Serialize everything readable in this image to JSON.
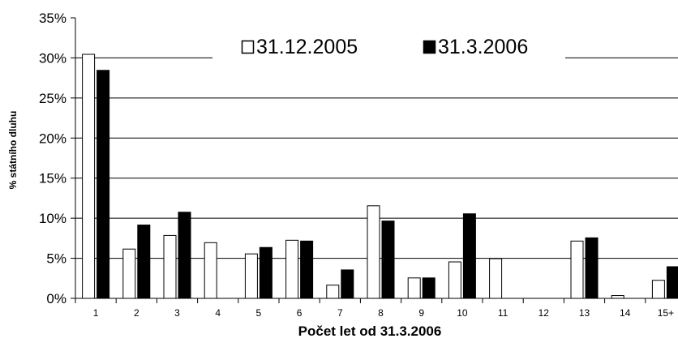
{
  "chart_data": {
    "type": "bar",
    "title": "",
    "xlabel": "Počet let od 31.3.2006",
    "ylabel": "% státního dluhu",
    "categories": [
      "1",
      "2",
      "3",
      "4",
      "5",
      "6",
      "7",
      "8",
      "9",
      "10",
      "11",
      "12",
      "13",
      "14",
      "15+"
    ],
    "y_ticks": [
      "0%",
      "5%",
      "10%",
      "15%",
      "20%",
      "25%",
      "30%",
      "35%"
    ],
    "ylim": [
      0,
      35
    ],
    "grid": true,
    "legend_position": "top",
    "series": [
      {
        "name": "31.12.2005",
        "fill": "#ffffff",
        "stroke": "#000000",
        "values": [
          30.5,
          6.2,
          7.9,
          7.0,
          5.6,
          7.3,
          1.7,
          11.6,
          2.6,
          4.6,
          5.0,
          0.0,
          7.2,
          0.4,
          2.3
        ]
      },
      {
        "name": "31.3.2006",
        "fill": "#000000",
        "stroke": "#000000",
        "values": [
          28.5,
          9.2,
          10.8,
          0.0,
          6.4,
          7.2,
          3.6,
          9.7,
          2.6,
          10.6,
          0.0,
          0.0,
          7.6,
          0.0,
          4.0
        ]
      }
    ]
  }
}
